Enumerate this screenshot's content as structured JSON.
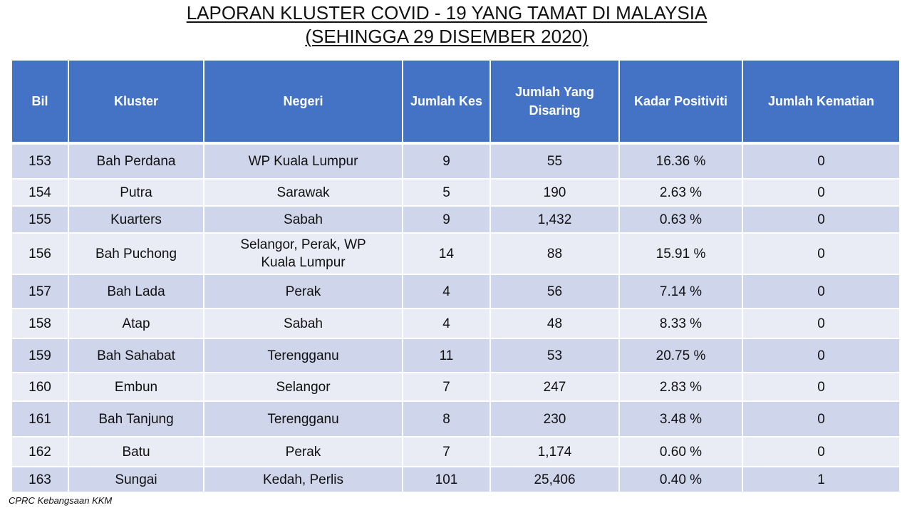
{
  "title": {
    "line1": "LAPORAN KLUSTER COVID - 19 YANG TAMAT DI MALAYSIA",
    "line2": "(SEHINGGA 29 DISEMBER 2020)"
  },
  "table": {
    "headers": [
      "Bil",
      "Kluster",
      "Negeri",
      "Jumlah Kes",
      "Jumlah Yang Disaring",
      "Kadar Positiviti",
      "Jumlah Kematian"
    ],
    "rows": [
      {
        "bil": "153",
        "kluster": "Bah Perdana",
        "negeri": "WP Kuala Lumpur",
        "kes": "9",
        "disaring": "55",
        "positiviti": "16.36 %",
        "kematian": "0"
      },
      {
        "bil": "154",
        "kluster": "Putra",
        "negeri": "Sarawak",
        "kes": "5",
        "disaring": "190",
        "positiviti": "2.63 %",
        "kematian": "0"
      },
      {
        "bil": "155",
        "kluster": "Kuarters",
        "negeri": "Sabah",
        "kes": "9",
        "disaring": "1,432",
        "positiviti": "0.63 %",
        "kematian": "0"
      },
      {
        "bil": "156",
        "kluster": "Bah Puchong",
        "negeri": "Selangor, Perak, WP Kuala Lumpur",
        "kes": "14",
        "disaring": "88",
        "positiviti": "15.91 %",
        "kematian": "0"
      },
      {
        "bil": "157",
        "kluster": "Bah Lada",
        "negeri": "Perak",
        "kes": "4",
        "disaring": "56",
        "positiviti": "7.14 %",
        "kematian": "0"
      },
      {
        "bil": "158",
        "kluster": "Atap",
        "negeri": "Sabah",
        "kes": "4",
        "disaring": "48",
        "positiviti": "8.33 %",
        "kematian": "0"
      },
      {
        "bil": "159",
        "kluster": "Bah Sahabat",
        "negeri": "Terengganu",
        "kes": "11",
        "disaring": "53",
        "positiviti": "20.75 %",
        "kematian": "0"
      },
      {
        "bil": "160",
        "kluster": "Embun",
        "negeri": "Selangor",
        "kes": "7",
        "disaring": "247",
        "positiviti": "2.83 %",
        "kematian": "0"
      },
      {
        "bil": "161",
        "kluster": "Bah Tanjung",
        "negeri": "Terengganu",
        "kes": "8",
        "disaring": "230",
        "positiviti": "3.48 %",
        "kematian": "0"
      },
      {
        "bil": "162",
        "kluster": "Batu",
        "negeri": "Perak",
        "kes": "7",
        "disaring": "1,174",
        "positiviti": "0.60 %",
        "kematian": "0"
      },
      {
        "bil": "163",
        "kluster": "Sungai",
        "negeri": "Kedah, Perlis",
        "kes": "101",
        "disaring": "25,406",
        "positiviti": "0.40 %",
        "kematian": "1"
      }
    ]
  },
  "footer": {
    "source": "CPRC Kebangsaan KKM"
  }
}
